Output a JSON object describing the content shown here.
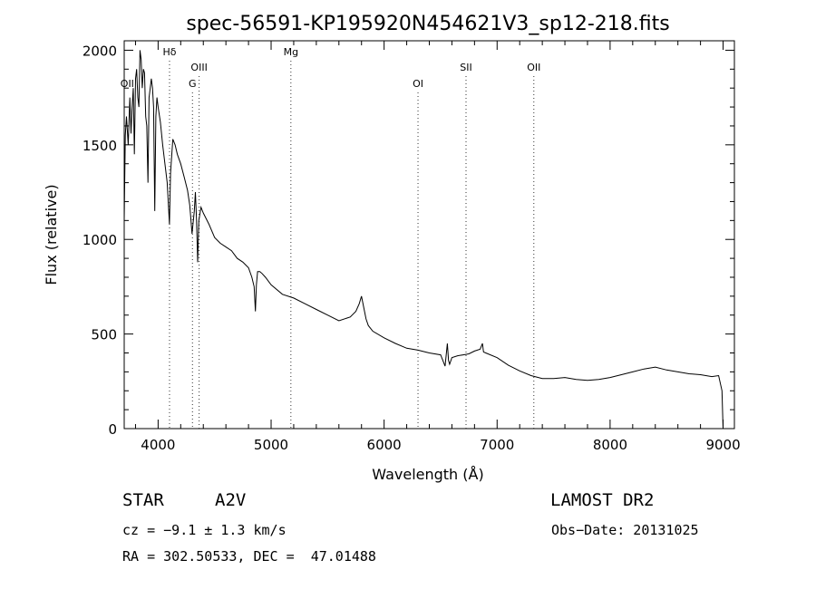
{
  "chart_data": {
    "type": "line",
    "title": "spec-56591-KP195920N454621V3_sp12-218.fits",
    "xlabel": "Wavelength (Å)",
    "ylabel": "Flux (relative)",
    "xlim": [
      3700,
      9100
    ],
    "ylim": [
      0,
      2050
    ],
    "xticks": [
      4000,
      5000,
      6000,
      7000,
      8000,
      9000
    ],
    "yticks": [
      0,
      500,
      1000,
      1500,
      2000
    ],
    "grid": false,
    "series": [
      {
        "x": [
          3700,
          3710,
          3720,
          3735,
          3750,
          3760,
          3770,
          3780,
          3790,
          3800,
          3810,
          3820,
          3830,
          3840,
          3850,
          3860,
          3870,
          3880,
          3890,
          3900,
          3910,
          3920,
          3930,
          3940,
          3950,
          3960,
          3970,
          3980,
          3990,
          4000,
          4020,
          4040,
          4060,
          4080,
          4100,
          4110,
          4130,
          4150,
          4170,
          4200,
          4230,
          4260,
          4280,
          4300,
          4320,
          4330,
          4340,
          4350,
          4360,
          4380,
          4400,
          4450,
          4500,
          4550,
          4600,
          4650,
          4700,
          4750,
          4800,
          4830,
          4850,
          4861,
          4870,
          4880,
          4900,
          4920,
          4950,
          5000,
          5100,
          5200,
          5300,
          5400,
          5500,
          5600,
          5700,
          5750,
          5780,
          5800,
          5820,
          5840,
          5860,
          5900,
          6000,
          6100,
          6200,
          6300,
          6400,
          6500,
          6540,
          6560,
          6570,
          6580,
          6600,
          6650,
          6700,
          6750,
          6800,
          6850,
          6870,
          6880,
          6900,
          7000,
          7100,
          7200,
          7300,
          7400,
          7500,
          7600,
          7700,
          7800,
          7900,
          8000,
          8100,
          8200,
          8300,
          8400,
          8500,
          8600,
          8700,
          8800,
          8900,
          8960,
          8990,
          9000
        ],
        "y": [
          1100,
          1550,
          1650,
          1500,
          1750,
          1560,
          1700,
          1800,
          1450,
          1850,
          1900,
          1750,
          1700,
          2000,
          1950,
          1800,
          1900,
          1880,
          1650,
          1600,
          1300,
          1750,
          1800,
          1850,
          1800,
          1700,
          1150,
          1650,
          1750,
          1700,
          1620,
          1500,
          1400,
          1300,
          1080,
          1350,
          1530,
          1500,
          1450,
          1400,
          1330,
          1260,
          1180,
          1030,
          1150,
          1250,
          1100,
          880,
          1100,
          1170,
          1140,
          1080,
          1010,
          980,
          960,
          940,
          900,
          880,
          850,
          800,
          750,
          620,
          760,
          830,
          830,
          820,
          800,
          760,
          710,
          690,
          660,
          630,
          600,
          570,
          590,
          620,
          660,
          700,
          640,
          580,
          545,
          515,
          480,
          450,
          425,
          415,
          400,
          390,
          330,
          450,
          360,
          340,
          375,
          385,
          390,
          395,
          410,
          420,
          450,
          405,
          400,
          375,
          335,
          305,
          280,
          265,
          265,
          270,
          260,
          255,
          260,
          270,
          285,
          300,
          315,
          325,
          310,
          300,
          290,
          285,
          275,
          280,
          200,
          0
        ]
      }
    ],
    "line_markers": [
      {
        "label": "OII",
        "x": 3727,
        "row": 2
      },
      {
        "label": "Hδ",
        "x": 4101,
        "row": 0
      },
      {
        "label": "OIII",
        "x": 4363,
        "row": 1
      },
      {
        "label": "G",
        "x": 4304,
        "row": 2
      },
      {
        "label": "Mg",
        "x": 5175,
        "row": 0
      },
      {
        "label": "OI",
        "x": 6300,
        "row": 2
      },
      {
        "label": "OII",
        "x": 7325,
        "row": 1
      },
      {
        "label": "SII",
        "x": 6725,
        "row": 1
      }
    ]
  },
  "info": {
    "object_class": "STAR",
    "subclass": "A2V",
    "survey": "LAMOST DR2",
    "cz": "cz = −9.1 ± 1.3 km/s",
    "obs_date": "Obs−Date: 20131025",
    "coords": "RA = 302.50533, DEC =  47.01488"
  }
}
